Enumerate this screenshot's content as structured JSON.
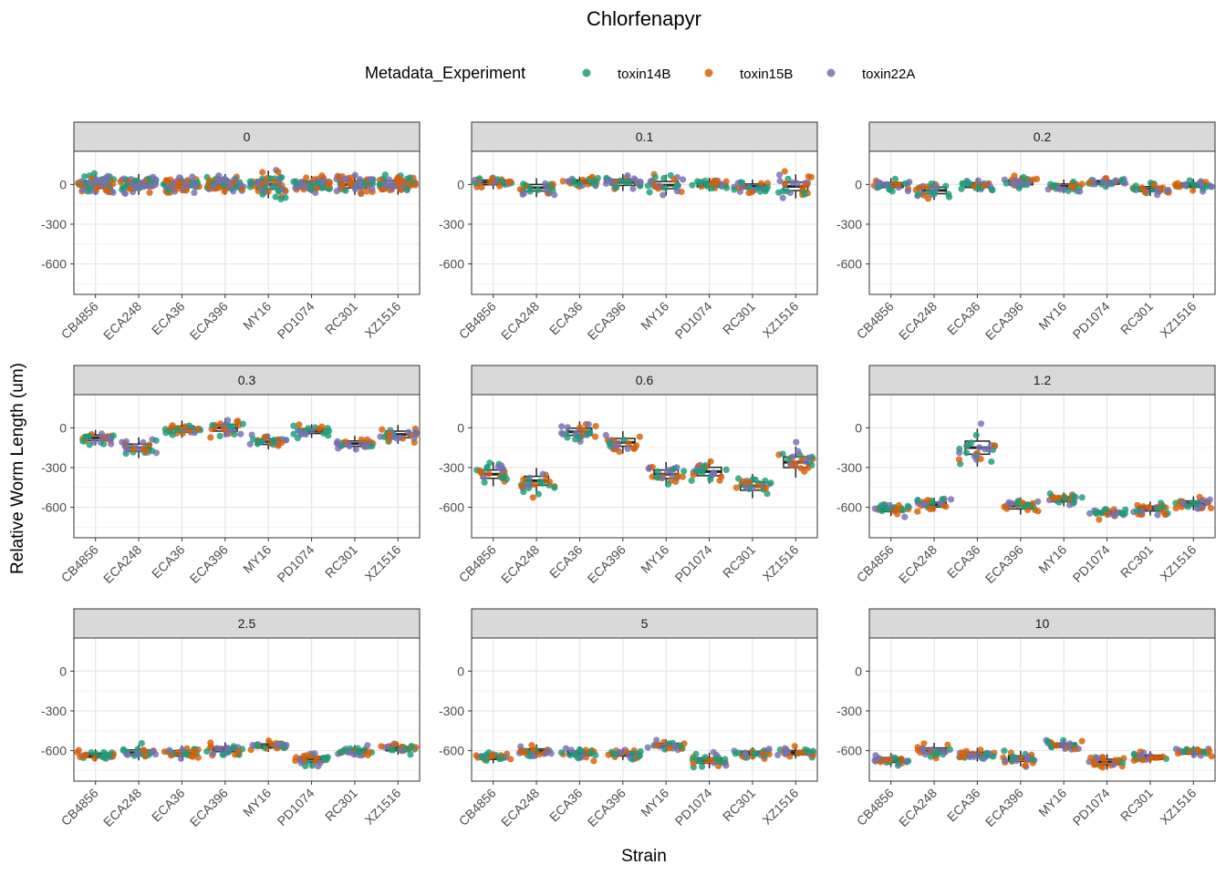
{
  "chart_data": {
    "type": "scatter",
    "subtype": "faceted jitter + boxplot",
    "title": "Chlorfenapyr",
    "xlabel": "Strain",
    "ylabel": "Relative Worm Length (um)",
    "ylim": [
      -830,
      250
    ],
    "y_ticks": [
      0,
      -300,
      -600
    ],
    "y_tick_labels": [
      "0",
      "-300",
      "-600"
    ],
    "legend": {
      "title": "Metadata_Experiment",
      "position": "top",
      "entries": [
        {
          "label": "toxin14B",
          "color": "#1b9e77"
        },
        {
          "label": "toxin15B",
          "color": "#d95f02"
        },
        {
          "label": "toxin22A",
          "color": "#7570b3"
        }
      ]
    },
    "strains": [
      "CB4856",
      "ECA248",
      "ECA36",
      "ECA396",
      "MY16",
      "PD1074",
      "RC301",
      "XZ1516"
    ],
    "facets": [
      {
        "label": "0",
        "medians": [
          0,
          0,
          0,
          0,
          0,
          0,
          0,
          0
        ],
        "spread": [
          60,
          60,
          50,
          60,
          80,
          50,
          60,
          60
        ]
      },
      {
        "label": "0.1",
        "medians": [
          15,
          -25,
          20,
          15,
          -5,
          0,
          -15,
          -15
        ],
        "spread": [
          40,
          55,
          30,
          50,
          60,
          40,
          40,
          70
        ]
      },
      {
        "label": "0.2",
        "medians": [
          -5,
          -45,
          -5,
          15,
          -15,
          15,
          -35,
          -5
        ],
        "spread": [
          40,
          55,
          40,
          40,
          40,
          30,
          40,
          35
        ]
      },
      {
        "label": "0.3",
        "medians": [
          -75,
          -150,
          -10,
          0,
          -105,
          -25,
          -120,
          -50
        ],
        "spread": [
          45,
          60,
          50,
          55,
          45,
          40,
          45,
          55
        ]
      },
      {
        "label": "0.6",
        "medians": [
          -350,
          -400,
          -30,
          -110,
          -350,
          -330,
          -440,
          -260
        ],
        "spread": [
          70,
          75,
          60,
          65,
          70,
          70,
          70,
          90
        ]
      },
      {
        "label": "1.2",
        "medians": [
          -615,
          -580,
          -150,
          -590,
          -540,
          -640,
          -610,
          -570
        ],
        "spread": [
          40,
          40,
          110,
          50,
          40,
          30,
          40,
          40
        ]
      },
      {
        "label": "2.5",
        "medians": [
          -635,
          -615,
          -620,
          -590,
          -565,
          -665,
          -605,
          -585
        ],
        "spread": [
          35,
          45,
          45,
          40,
          35,
          45,
          35,
          35
        ]
      },
      {
        "label": "5",
        "medians": [
          -650,
          -605,
          -620,
          -625,
          -560,
          -675,
          -620,
          -615
        ],
        "spread": [
          35,
          40,
          40,
          35,
          35,
          45,
          35,
          35
        ]
      },
      {
        "label": "10",
        "medians": [
          -670,
          -600,
          -630,
          -660,
          -560,
          -685,
          -650,
          -610
        ],
        "spread": [
          40,
          45,
          40,
          45,
          35,
          45,
          35,
          35
        ]
      }
    ]
  }
}
